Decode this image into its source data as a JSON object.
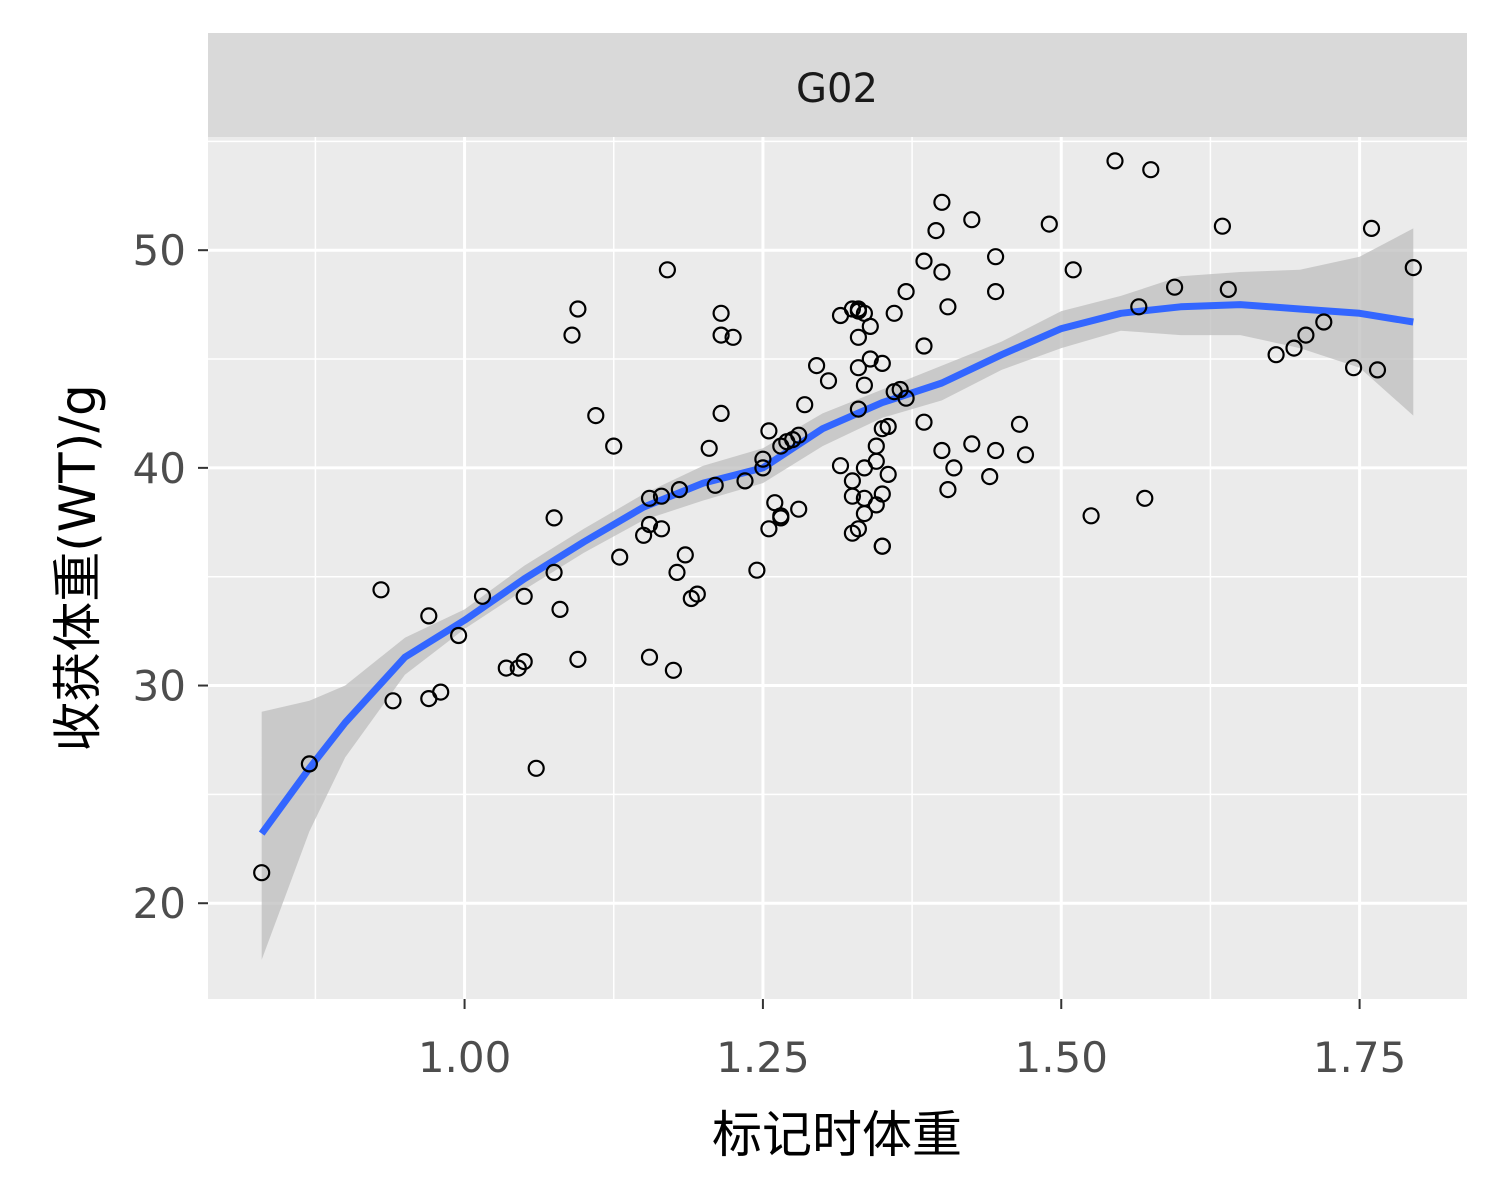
{
  "chart_data": {
    "type": "scatter",
    "facet_label": "G02",
    "xlabel": "标记时体重",
    "ylabel": "收获体重(WT)/g",
    "xlim": [
      0.785,
      1.84
    ],
    "ylim": [
      15.6,
      55.2
    ],
    "x_ticks": [
      1.0,
      1.25,
      1.5,
      1.75
    ],
    "x_tick_labels": [
      "1.00",
      "1.25",
      "1.50",
      "1.75"
    ],
    "x_minor_ticks": [
      0.875,
      1.125,
      1.375,
      1.625
    ],
    "y_ticks": [
      20,
      30,
      40,
      50
    ],
    "y_tick_labels": [
      "20",
      "30",
      "40",
      "50"
    ],
    "y_minor_ticks": [
      25,
      35,
      45,
      55
    ],
    "grid": true,
    "colors": {
      "panel_background": "#ebebeb",
      "strip_background": "#d9d9d9",
      "grid": "#ffffff",
      "smooth_line": "#3366ff",
      "confidence_band": "#bdbdbd",
      "points": "#000000"
    },
    "points": [
      [
        0.83,
        21.4
      ],
      [
        0.87,
        26.4
      ],
      [
        0.93,
        34.4
      ],
      [
        0.94,
        29.3
      ],
      [
        0.97,
        33.2
      ],
      [
        0.97,
        29.4
      ],
      [
        0.98,
        29.7
      ],
      [
        0.995,
        32.3
      ],
      [
        1.015,
        34.1
      ],
      [
        1.035,
        30.8
      ],
      [
        1.045,
        30.8
      ],
      [
        1.05,
        31.1
      ],
      [
        1.05,
        34.1
      ],
      [
        1.06,
        26.2
      ],
      [
        1.075,
        37.7
      ],
      [
        1.075,
        35.2
      ],
      [
        1.08,
        33.5
      ],
      [
        1.09,
        46.1
      ],
      [
        1.095,
        47.3
      ],
      [
        1.095,
        31.2
      ],
      [
        1.11,
        42.4
      ],
      [
        1.125,
        41.0
      ],
      [
        1.13,
        35.9
      ],
      [
        1.15,
        36.9
      ],
      [
        1.155,
        38.6
      ],
      [
        1.155,
        37.4
      ],
      [
        1.155,
        31.3
      ],
      [
        1.165,
        38.7
      ],
      [
        1.165,
        37.2
      ],
      [
        1.17,
        49.1
      ],
      [
        1.175,
        30.7
      ],
      [
        1.178,
        35.2
      ],
      [
        1.18,
        39.0
      ],
      [
        1.185,
        36.0
      ],
      [
        1.19,
        34.0
      ],
      [
        1.195,
        34.2
      ],
      [
        1.205,
        40.9
      ],
      [
        1.21,
        39.2
      ],
      [
        1.215,
        47.1
      ],
      [
        1.215,
        46.1
      ],
      [
        1.215,
        42.5
      ],
      [
        1.225,
        46.0
      ],
      [
        1.235,
        39.4
      ],
      [
        1.245,
        35.3
      ],
      [
        1.25,
        40.4
      ],
      [
        1.25,
        40.0
      ],
      [
        1.255,
        41.7
      ],
      [
        1.255,
        37.2
      ],
      [
        1.26,
        38.4
      ],
      [
        1.265,
        37.8
      ],
      [
        1.265,
        37.7
      ],
      [
        1.265,
        41.0
      ],
      [
        1.27,
        41.2
      ],
      [
        1.275,
        41.3
      ],
      [
        1.28,
        41.5
      ],
      [
        1.28,
        38.1
      ],
      [
        1.285,
        42.9
      ],
      [
        1.295,
        44.7
      ],
      [
        1.305,
        44.0
      ],
      [
        1.315,
        40.1
      ],
      [
        1.315,
        47.0
      ],
      [
        1.325,
        47.3
      ],
      [
        1.325,
        37.0
      ],
      [
        1.325,
        39.4
      ],
      [
        1.325,
        38.7
      ],
      [
        1.33,
        47.3
      ],
      [
        1.33,
        47.2
      ],
      [
        1.33,
        46.0
      ],
      [
        1.33,
        44.6
      ],
      [
        1.33,
        42.7
      ],
      [
        1.33,
        37.2
      ],
      [
        1.335,
        47.1
      ],
      [
        1.335,
        43.8
      ],
      [
        1.335,
        40.0
      ],
      [
        1.335,
        38.6
      ],
      [
        1.335,
        37.9
      ],
      [
        1.34,
        46.5
      ],
      [
        1.34,
        45.0
      ],
      [
        1.345,
        41.0
      ],
      [
        1.345,
        40.3
      ],
      [
        1.345,
        38.3
      ],
      [
        1.35,
        44.8
      ],
      [
        1.35,
        41.8
      ],
      [
        1.35,
        38.8
      ],
      [
        1.35,
        36.4
      ],
      [
        1.35,
        36.4
      ],
      [
        1.355,
        41.9
      ],
      [
        1.355,
        39.7
      ],
      [
        1.36,
        43.5
      ],
      [
        1.36,
        47.1
      ],
      [
        1.365,
        43.6
      ],
      [
        1.37,
        43.2
      ],
      [
        1.37,
        48.1
      ],
      [
        1.385,
        49.5
      ],
      [
        1.385,
        45.6
      ],
      [
        1.385,
        42.1
      ],
      [
        1.395,
        50.9
      ],
      [
        1.4,
        52.2
      ],
      [
        1.4,
        49.0
      ],
      [
        1.4,
        40.8
      ],
      [
        1.405,
        47.4
      ],
      [
        1.405,
        39.0
      ],
      [
        1.41,
        40.0
      ],
      [
        1.425,
        51.4
      ],
      [
        1.425,
        41.1
      ],
      [
        1.44,
        39.6
      ],
      [
        1.445,
        49.7
      ],
      [
        1.445,
        48.1
      ],
      [
        1.445,
        40.8
      ],
      [
        1.465,
        42.0
      ],
      [
        1.47,
        40.6
      ],
      [
        1.49,
        51.2
      ],
      [
        1.51,
        49.1
      ],
      [
        1.525,
        37.8
      ],
      [
        1.545,
        54.1
      ],
      [
        1.565,
        47.4
      ],
      [
        1.57,
        38.6
      ],
      [
        1.575,
        53.7
      ],
      [
        1.595,
        48.3
      ],
      [
        1.635,
        51.1
      ],
      [
        1.64,
        48.2
      ],
      [
        1.68,
        45.2
      ],
      [
        1.695,
        45.5
      ],
      [
        1.705,
        46.1
      ],
      [
        1.72,
        46.7
      ],
      [
        1.745,
        44.6
      ],
      [
        1.76,
        51.0
      ],
      [
        1.765,
        44.5
      ],
      [
        1.795,
        49.2
      ]
    ],
    "smooth": {
      "x": [
        0.83,
        0.87,
        0.9,
        0.95,
        1.0,
        1.05,
        1.1,
        1.15,
        1.2,
        1.25,
        1.3,
        1.35,
        1.4,
        1.45,
        1.5,
        1.55,
        1.6,
        1.65,
        1.7,
        1.75,
        1.795
      ],
      "y": [
        23.2,
        26.2,
        28.3,
        31.3,
        33.0,
        34.9,
        36.6,
        38.2,
        39.3,
        40.0,
        41.8,
        43.0,
        43.9,
        45.2,
        46.4,
        47.1,
        47.4,
        47.5,
        47.3,
        47.1,
        46.7
      ],
      "lower": [
        17.4,
        23.3,
        26.7,
        30.5,
        32.6,
        34.4,
        36.1,
        37.6,
        38.5,
        39.3,
        41.0,
        42.3,
        43.1,
        44.5,
        45.5,
        46.3,
        46.1,
        46.1,
        45.5,
        44.6,
        42.4
      ],
      "upper": [
        28.8,
        29.3,
        30.0,
        32.2,
        33.5,
        35.5,
        37.2,
        38.8,
        40.1,
        40.9,
        42.5,
        43.6,
        44.7,
        45.8,
        47.2,
        47.9,
        48.8,
        49.0,
        49.1,
        49.7,
        51.0
      ]
    }
  }
}
